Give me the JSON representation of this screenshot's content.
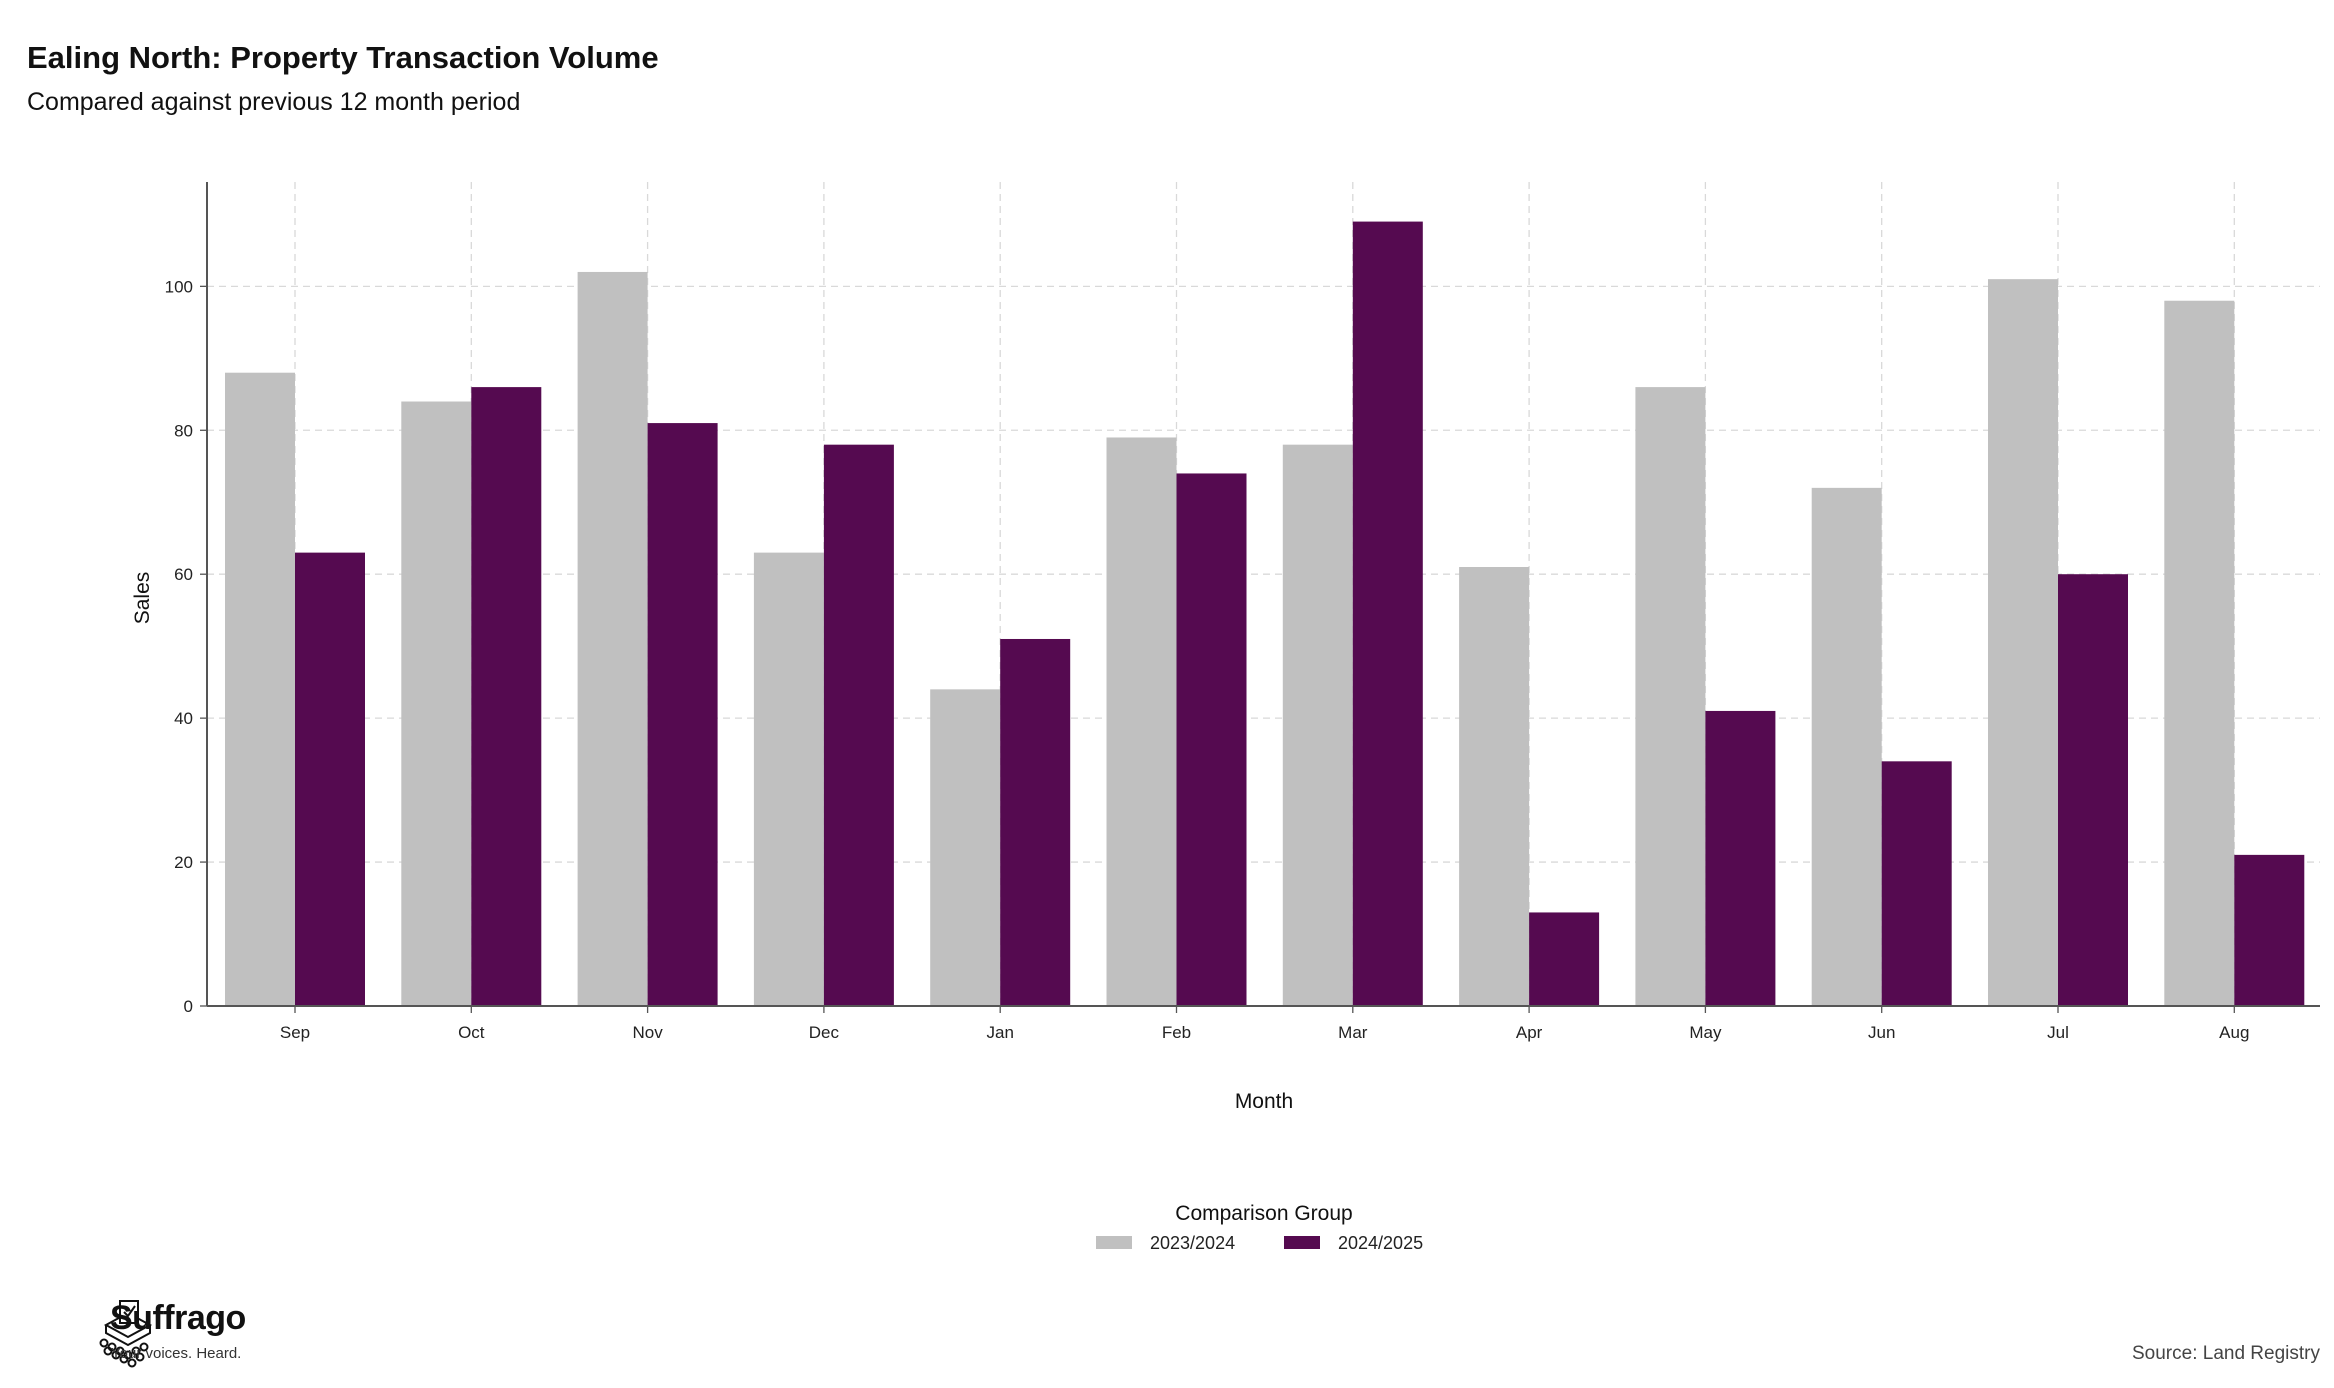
{
  "header": {
    "title": "Ealing North: Property Transaction Volume",
    "subtitle": "Compared against previous 12 month period"
  },
  "chart_data": {
    "type": "bar",
    "title": "Ealing North: Property Transaction Volume",
    "subtitle": "Compared against previous 12 month period",
    "xlabel": "Month",
    "ylabel": "Sales",
    "categories": [
      "Sep",
      "Oct",
      "Nov",
      "Dec",
      "Jan",
      "Feb",
      "Mar",
      "Apr",
      "May",
      "Jun",
      "Jul",
      "Aug"
    ],
    "series": [
      {
        "name": "2023/2024",
        "color": "#c0c0c0",
        "values": [
          88,
          84,
          102,
          63,
          44,
          79,
          78,
          61,
          86,
          72,
          101,
          98
        ]
      },
      {
        "name": "2024/2025",
        "color": "#550a50",
        "values": [
          63,
          86,
          81,
          78,
          51,
          74,
          109,
          13,
          41,
          34,
          60,
          21
        ]
      }
    ],
    "ylim": [
      0,
      114.5
    ],
    "yticks": [
      0,
      20,
      40,
      60,
      80,
      100
    ],
    "grid": true,
    "legend": {
      "title": "Comparison Group",
      "position": "bottom-center"
    }
  },
  "footer": {
    "brand": "Suffrago",
    "tagline": "Your voices. Heard.",
    "source": "Source: Land Registry"
  }
}
